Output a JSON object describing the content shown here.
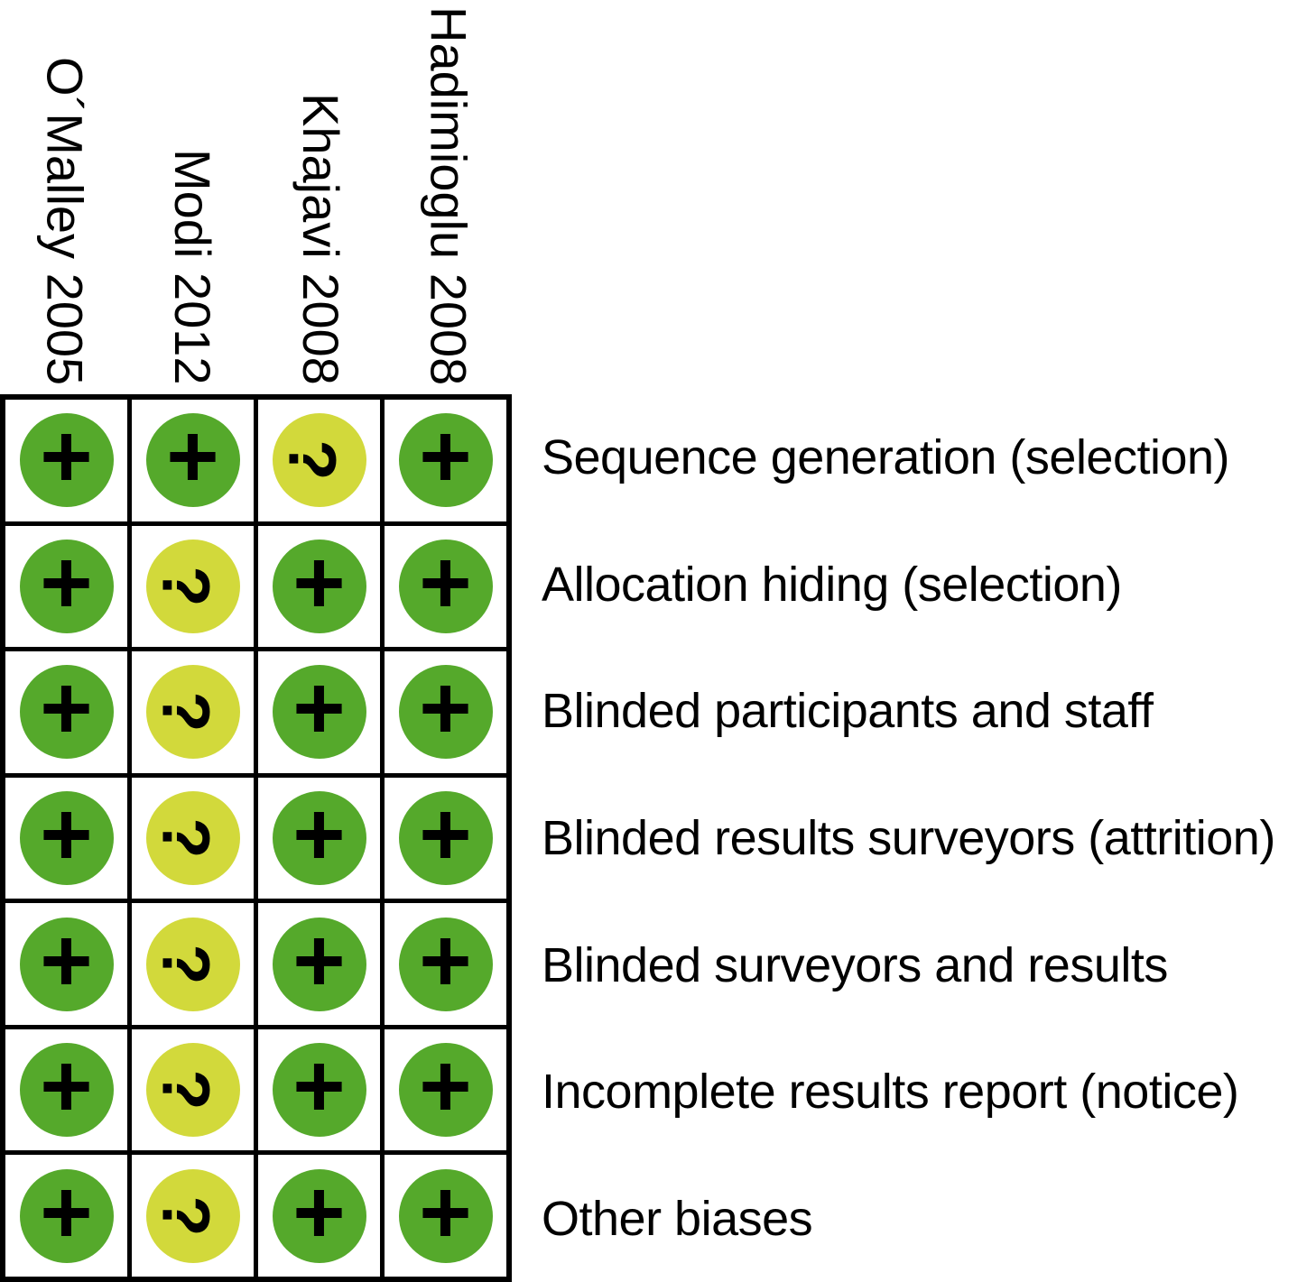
{
  "chart_data": {
    "type": "heatmap",
    "title": "",
    "columns": [
      "O´Malley 2005",
      "Modi 2012",
      "Khajavi 2008",
      "Hadimioglu 2008"
    ],
    "rows": [
      "Sequence generation (selection)",
      "Allocation hiding (selection)",
      "Blinded participants and staff",
      "Blinded results surveyors (attrition)",
      "Blinded surveyors and results",
      "Incomplete results report (notice)",
      "Other biases"
    ],
    "values": [
      [
        "+",
        "+",
        "?",
        "+"
      ],
      [
        "+",
        "?",
        "+",
        "+"
      ],
      [
        "+",
        "?",
        "+",
        "+"
      ],
      [
        "+",
        "?",
        "+",
        "+"
      ],
      [
        "+",
        "?",
        "+",
        "+"
      ],
      [
        "+",
        "?",
        "+",
        "+"
      ],
      [
        "+",
        "?",
        "+",
        "+"
      ]
    ],
    "symbol_legend": {
      "+": "low-risk",
      "?": "unclear-risk"
    },
    "colors": {
      "low_risk": "#55A92B",
      "unclear_risk": "#D2D93B",
      "grid_line": "#000000",
      "symbol_text": "#000000",
      "background": "#FFFFFF"
    },
    "layout": {
      "grid_columns": 4,
      "grid_rows": 7,
      "column_headers_rotated_deg": 90,
      "question_mark_rotated_deg": 90
    }
  }
}
